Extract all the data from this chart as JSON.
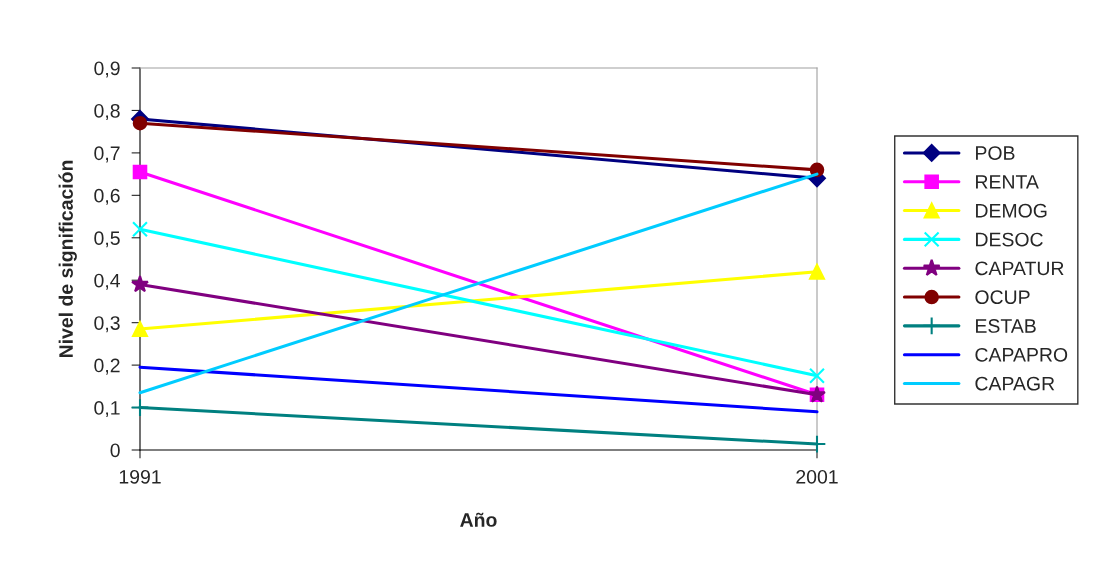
{
  "chart_data": {
    "type": "line",
    "xlabel": "Año",
    "ylabel": "Nivel de significación",
    "x": [
      1991,
      2001
    ],
    "xlim": [
      1991,
      2001
    ],
    "xticks": [
      1991,
      2001
    ],
    "ylim": [
      0,
      0.9
    ],
    "yticks": [
      {
        "value": 0,
        "label": "0"
      },
      {
        "value": 0.1,
        "label": "0,1"
      },
      {
        "value": 0.2,
        "label": "0,2"
      },
      {
        "value": 0.3,
        "label": "0,3"
      },
      {
        "value": 0.4,
        "label": "0,4"
      },
      {
        "value": 0.5,
        "label": "0,5"
      },
      {
        "value": 0.6,
        "label": "0,6"
      },
      {
        "value": 0.7,
        "label": "0,7"
      },
      {
        "value": 0.8,
        "label": "0,8"
      },
      {
        "value": 0.9,
        "label": "0,9"
      }
    ],
    "grid": false,
    "legend": "right",
    "series": [
      {
        "name": "POB",
        "color": "#000080",
        "marker": "diamond",
        "values": [
          0.78,
          0.64
        ]
      },
      {
        "name": "RENTA",
        "color": "#ff00ff",
        "marker": "square",
        "values": [
          0.655,
          0.13
        ]
      },
      {
        "name": "DEMOG",
        "color": "#ffff00",
        "marker": "triangle",
        "values": [
          0.285,
          0.42
        ]
      },
      {
        "name": "DESOC",
        "color": "#00ffff",
        "marker": "cross",
        "values": [
          0.52,
          0.175
        ]
      },
      {
        "name": "CAPATUR",
        "color": "#800080",
        "marker": "star",
        "values": [
          0.39,
          0.13
        ]
      },
      {
        "name": "OCUP",
        "color": "#800000",
        "marker": "circle",
        "values": [
          0.77,
          0.66
        ]
      },
      {
        "name": "ESTAB",
        "color": "#008080",
        "marker": "plus",
        "values": [
          0.1,
          0.014
        ]
      },
      {
        "name": "CAPAPRO",
        "color": "#0000ff",
        "values": [
          0.195,
          0.09
        ]
      },
      {
        "name": "CAPAGR",
        "color": "#00ccff",
        "values": [
          0.135,
          0.65
        ]
      }
    ]
  }
}
